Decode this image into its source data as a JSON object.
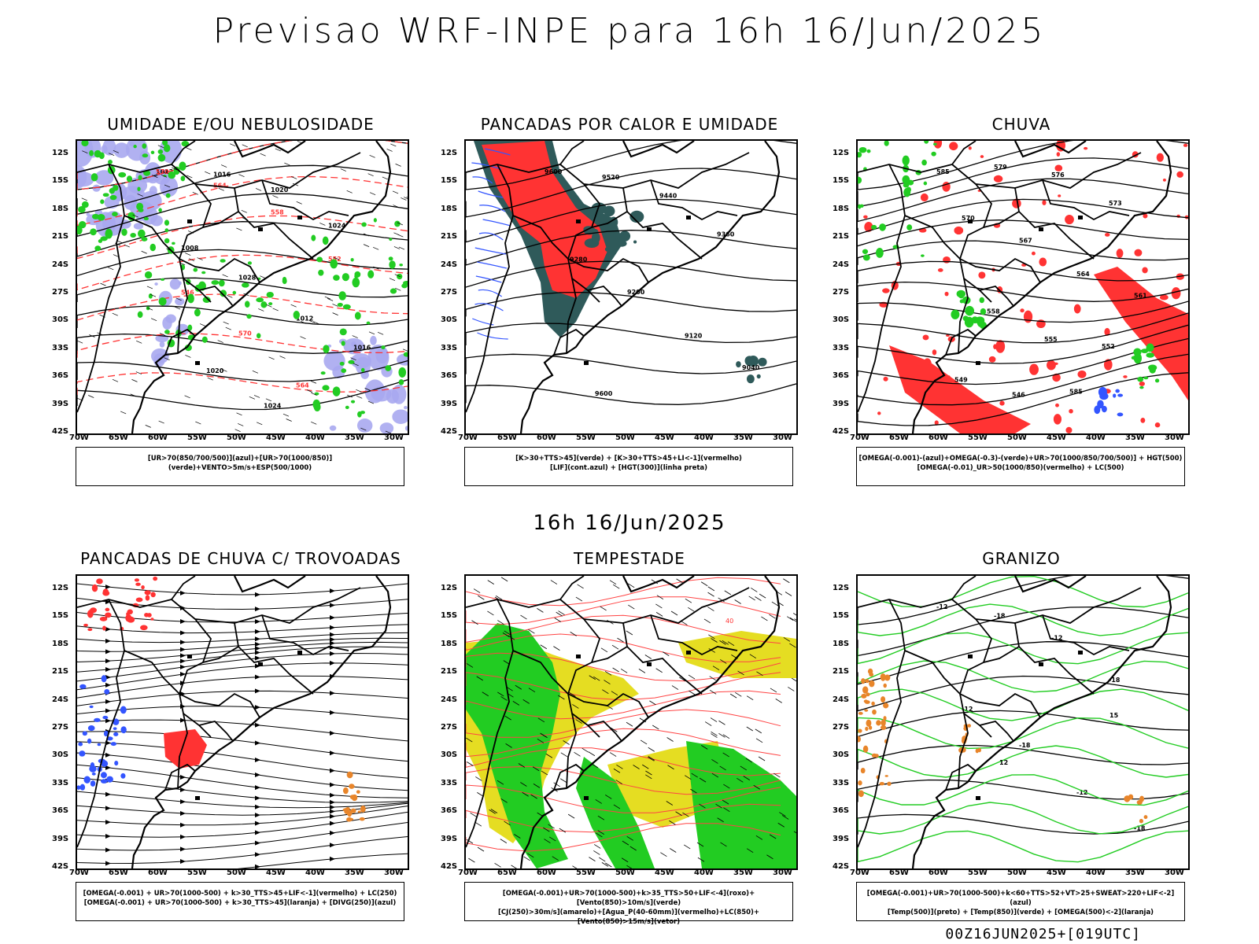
{
  "header": {
    "main_title": "Previsao WRF-INPE  para 16h 16/Jun/2025",
    "sub_title": "16h 16/Jun/2025",
    "footer": "00Z16JUN2025+[019UTC]"
  },
  "axes": {
    "lat_labels": [
      "12S",
      "15S",
      "18S",
      "21S",
      "24S",
      "27S",
      "30S",
      "33S",
      "36S",
      "39S",
      "42S"
    ],
    "lon_labels": [
      "70W",
      "65W",
      "60W",
      "55W",
      "50W",
      "45W",
      "40W",
      "35W",
      "30W"
    ]
  },
  "panels": [
    {
      "title": "UMIDADE E/OU NEBULOSIDADE",
      "legend": [
        "[UR>70(850/700/500)](azul)+[UR>70(1000/850)](verde)+VENTO>5m/s+ESP(500/1000)"
      ],
      "contour_labels": [
        "1012",
        "1016",
        "1020",
        "1024",
        "1008",
        "1028",
        "570",
        "564",
        "558",
        "552",
        "546"
      ]
    },
    {
      "title": "PANCADAS POR CALOR E UMIDADE",
      "legend": [
        "[K>30+TTS>45](verde)  +  [K>30+TTS>45+LI<-1](vermelho)",
        "[LIF](cont.azul)  +  [HGT(300)](linha preta)"
      ],
      "contour_labels": [
        "9600",
        "9520",
        "9440",
        "9360",
        "9280",
        "9200",
        "9120",
        "9040"
      ]
    },
    {
      "title": "CHUVA",
      "legend": [
        "[OMEGA(-0.001)-(azul)+OMEGA(-0.3)-(verde)+UR>70(1000/850/700/500)]  +  HGT(500)",
        "[OMEGA(-0.01)_UR>50(1000/850)(vermelho)  +  LC(500)"
      ],
      "contour_labels": [
        "585",
        "579",
        "576",
        "573",
        "570",
        "567",
        "564",
        "561",
        "558",
        "555",
        "552",
        "549",
        "546"
      ]
    },
    {
      "title": "PANCADAS DE CHUVA C/ TROVOADAS",
      "legend": [
        "[OMEGA(-0.001)  +  UR>70(1000-500)  +  k>30_TTS>45+LIF<-1](vermelho)  +  LC(250)",
        "[OMEGA(-0.001)  +  UR>70(1000-500)  +  k>30_TTS>45](laranja)  +  [DIVG(250)](azul)"
      ],
      "contour_labels": []
    },
    {
      "title": "TEMPESTADE",
      "legend": [
        "[OMEGA(-0.001)+UR>70(1000-500)+k>35_TTS>50+LIF<-4](roxo)+[Vento(850)>10m/s](verde)",
        "[CJ(250)>30m/s](amarelo)+[Agua_P(40-60mm)](vermelho)+LC(850)+[Vento(850)>15m/s](vetor)"
      ],
      "contour_labels": [
        "40"
      ]
    },
    {
      "title": "GRANIZO",
      "legend": [
        "[OMEGA(-0.001)+UR>70(1000-500)+k<60+TTS>52+VT>25+SWEAT>220+LIF<-2](azul)",
        "[Temp(500)](preto)  +  [Temp(850)](verde)  +  [OMEGA(500)<-2](laranja)"
      ],
      "contour_labels": [
        "-12",
        "-18",
        "12",
        "15"
      ]
    }
  ],
  "colors": {
    "blue": "#3355ff",
    "lightblue": "#a9a9f0",
    "green": "#22cc22",
    "red": "#ff3333",
    "darkteal": "#2f5a5a",
    "yellow": "#e5dd22",
    "orange": "#e8852a",
    "black": "#000000"
  }
}
